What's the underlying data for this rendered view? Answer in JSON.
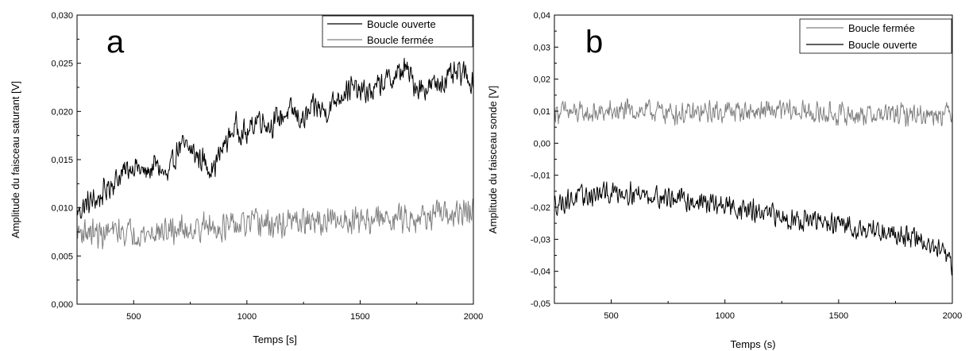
{
  "chart_data": [
    {
      "type": "line",
      "panel_label": "a",
      "xlabel": "Temps [s]",
      "ylabel": "Amplitude du faisceau saturant [V]",
      "xlim": [
        250,
        2000
      ],
      "ylim": [
        0,
        0.03
      ],
      "x_ticks": [
        500,
        1000,
        1500,
        2000
      ],
      "x_tick_labels": [
        "500",
        "1000",
        "1500",
        "2000"
      ],
      "y_ticks": [
        0,
        0.005,
        0.01,
        0.015,
        0.02,
        0.025,
        0.03
      ],
      "y_tick_labels": [
        "0,000",
        "0,005",
        "0,010",
        "0,015",
        "0,020",
        "0,025",
        "0,030"
      ],
      "legend_position": "top-right",
      "series": [
        {
          "name": "Boucle ouverte",
          "color": "#000000",
          "x": [
            250,
            300,
            350,
            400,
            450,
            500,
            550,
            600,
            650,
            700,
            750,
            800,
            850,
            900,
            950,
            1000,
            1050,
            1100,
            1150,
            1200,
            1250,
            1300,
            1350,
            1400,
            1450,
            1500,
            1550,
            1600,
            1650,
            1700,
            1750,
            1800,
            1850,
            1900,
            1950,
            2000
          ],
          "y": [
            0.0095,
            0.0105,
            0.011,
            0.0125,
            0.0135,
            0.0145,
            0.0135,
            0.0145,
            0.013,
            0.0165,
            0.016,
            0.015,
            0.014,
            0.0165,
            0.0185,
            0.0175,
            0.0195,
            0.0185,
            0.0195,
            0.02,
            0.019,
            0.0205,
            0.02,
            0.0215,
            0.0225,
            0.022,
            0.022,
            0.023,
            0.0235,
            0.0245,
            0.0225,
            0.0225,
            0.023,
            0.0235,
            0.024,
            0.023
          ],
          "noise": 0.0016
        },
        {
          "name": "Boucle fermée",
          "color": "#808080",
          "x": [
            250,
            300,
            350,
            400,
            450,
            500,
            550,
            600,
            650,
            700,
            750,
            800,
            850,
            900,
            950,
            1000,
            1050,
            1100,
            1150,
            1200,
            1250,
            1300,
            1350,
            1400,
            1450,
            1500,
            1550,
            1600,
            1650,
            1700,
            1750,
            1800,
            1850,
            1900,
            1950,
            2000
          ],
          "y": [
            0.0075,
            0.0075,
            0.0072,
            0.0075,
            0.0075,
            0.0075,
            0.0072,
            0.0075,
            0.0075,
            0.0078,
            0.0078,
            0.008,
            0.008,
            0.008,
            0.008,
            0.0082,
            0.0085,
            0.0082,
            0.0082,
            0.0085,
            0.0085,
            0.0085,
            0.0085,
            0.0085,
            0.0088,
            0.0088,
            0.0088,
            0.0088,
            0.009,
            0.009,
            0.009,
            0.0092,
            0.0092,
            0.0092,
            0.0095,
            0.0095
          ],
          "noise": 0.0017
        }
      ]
    },
    {
      "type": "line",
      "panel_label": "b",
      "xlabel": "Temps (s)",
      "ylabel": "Amplitude du faisceau sonde [V]",
      "xlim": [
        250,
        2000
      ],
      "ylim": [
        -0.05,
        0.04
      ],
      "x_ticks": [
        500,
        1000,
        1500,
        2000
      ],
      "x_tick_labels": [
        "500",
        "1000",
        "1500",
        "2000"
      ],
      "y_ticks": [
        -0.05,
        -0.04,
        -0.03,
        -0.02,
        -0.01,
        0,
        0.01,
        0.02,
        0.03,
        0.04
      ],
      "y_tick_labels": [
        "-0,05",
        "-0,04",
        "-0,03",
        "-0,02",
        "-0,01",
        "0,00",
        "0,01",
        "0,02",
        "0,03",
        "0,04"
      ],
      "legend_position": "top-right",
      "series": [
        {
          "name": "Boucle fermée",
          "color": "#808080",
          "x": [
            250,
            400,
            550,
            700,
            850,
            1000,
            1150,
            1300,
            1450,
            1600,
            1750,
            1900,
            2000
          ],
          "y": [
            0.01,
            0.009,
            0.01,
            0.01,
            0.009,
            0.01,
            0.01,
            0.01,
            0.009,
            0.009,
            0.009,
            0.009,
            0.01
          ],
          "noise": 0.0042
        },
        {
          "name": "Boucle ouverte",
          "color": "#000000",
          "x": [
            250,
            350,
            450,
            550,
            650,
            750,
            850,
            950,
            1050,
            1150,
            1250,
            1350,
            1450,
            1550,
            1650,
            1750,
            1850,
            1950,
            2000
          ],
          "y": [
            -0.019,
            -0.017,
            -0.016,
            -0.015,
            -0.016,
            -0.017,
            -0.018,
            -0.019,
            -0.02,
            -0.022,
            -0.023,
            -0.024,
            -0.025,
            -0.026,
            -0.027,
            -0.028,
            -0.03,
            -0.034,
            -0.038
          ],
          "noise": 0.0042
        }
      ]
    }
  ]
}
